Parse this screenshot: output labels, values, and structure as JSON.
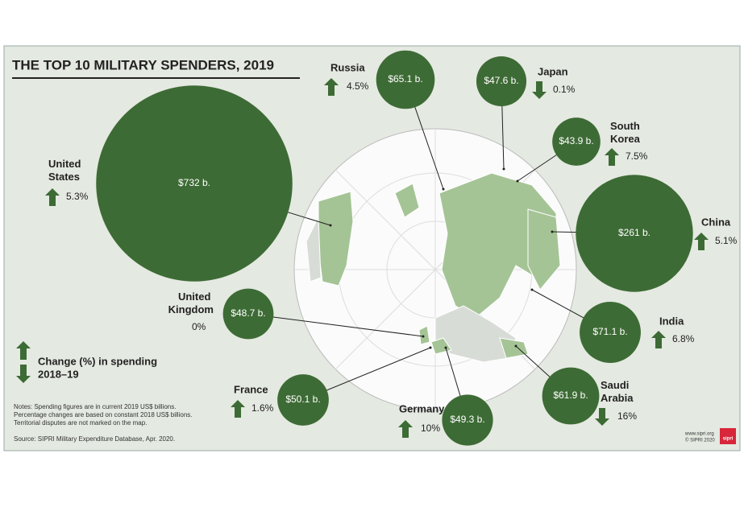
{
  "chart_data": {
    "type": "bubble_map",
    "title": "THE TOP 10 MILITARY SPENDERS, 2019",
    "categories": [
      "United States",
      "Russia",
      "Japan",
      "South Korea",
      "China",
      "India",
      "Saudi Arabia",
      "Germany",
      "France",
      "United Kingdom"
    ],
    "values": [
      732,
      65.1,
      47.6,
      43.9,
      261,
      71.1,
      61.9,
      49.3,
      50.1,
      48.7
    ],
    "value_labels": [
      "$732 b.",
      "$65.1 b.",
      "$47.6 b.",
      "$43.9 b.",
      "$261 b.",
      "$71.1 b.",
      "$61.9 b.",
      "$49.3 b.",
      "$50.1 b.",
      "$48.7 b."
    ],
    "changes": [
      5.3,
      4.5,
      -0.1,
      7.5,
      5.1,
      6.8,
      -16,
      10,
      1.6,
      0
    ],
    "change_labels": [
      "5.3%",
      "4.5%",
      "0.1%",
      "7.5%",
      "5.1%",
      "6.8%",
      "16%",
      "10%",
      "1.6%",
      "0%"
    ],
    "color": "#3d6b35",
    "legend": [
      "Change (%) in spending",
      "2018–19"
    ],
    "notes": [
      "Notes: Spending figures are in current 2019 US$ billions.",
      "Percentage changes are based on constant 2018 US$ billions.",
      "Territorial disputes are not marked on the map."
    ],
    "source": "Source: SIPRI Military Expenditure Database, Apr. 2020.",
    "credits": [
      "www.sipri.org",
      "© SIPRI 2020"
    ],
    "logo": "sipri"
  }
}
